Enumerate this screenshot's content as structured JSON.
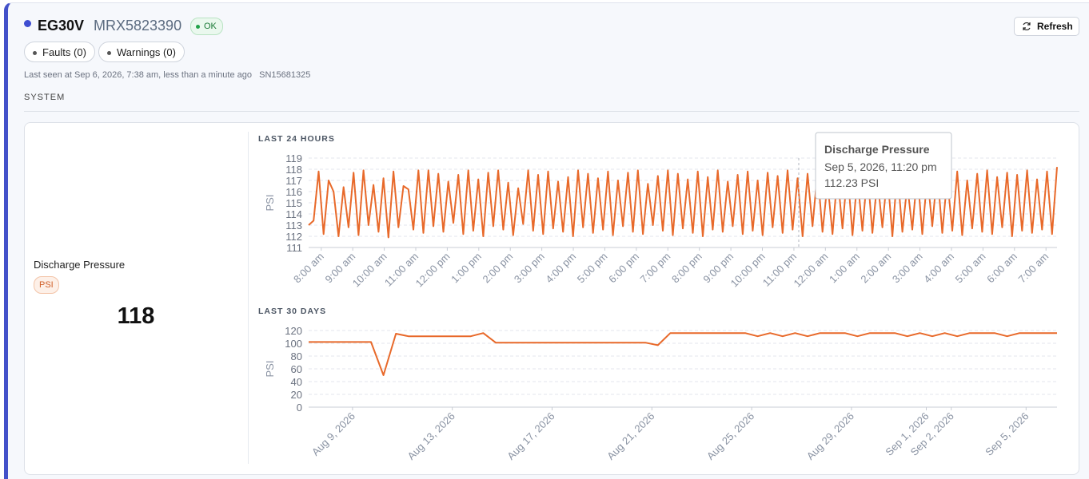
{
  "header": {
    "title": "EG30V",
    "model": "MRX5823390",
    "status": "OK",
    "faults": "Faults (0)",
    "warnings": "Warnings (0)",
    "last_seen": "Last seen at Sep 6, 2026, 7:38 am, less than a minute ago",
    "serial": "SN15681325",
    "refresh": "Refresh",
    "section": "SYSTEM"
  },
  "metric": {
    "name": "Discharge Pressure",
    "unit": "PSI",
    "value": 118
  },
  "charts": [
    {
      "type": "line",
      "title": "LAST 24 HOURS",
      "ylabel": "PSI",
      "color": "#e8692a",
      "grid": true,
      "ylim": [
        111,
        119
      ],
      "yticks": [
        111,
        112,
        113,
        114,
        115,
        116,
        117,
        118,
        119
      ],
      "xlim": [
        -0.4,
        23.35
      ],
      "xticks": [
        {
          "value": 0,
          "label": "8:00 am"
        },
        {
          "value": 1,
          "label": "9:00 am"
        },
        {
          "value": 2,
          "label": "10:00 am"
        },
        {
          "value": 3,
          "label": "11:00 am"
        },
        {
          "value": 4,
          "label": "12:00 pm"
        },
        {
          "value": 5,
          "label": "1:00 pm"
        },
        {
          "value": 6,
          "label": "2:00 pm"
        },
        {
          "value": 7,
          "label": "3:00 pm"
        },
        {
          "value": 8,
          "label": "4:00 pm"
        },
        {
          "value": 9,
          "label": "5:00 pm"
        },
        {
          "value": 10,
          "label": "6:00 pm"
        },
        {
          "value": 11,
          "label": "7:00 pm"
        },
        {
          "value": 12,
          "label": "8:00 pm"
        },
        {
          "value": 13,
          "label": "9:00 pm"
        },
        {
          "value": 14,
          "label": "10:00 pm"
        },
        {
          "value": 15,
          "label": "11:00 pm"
        },
        {
          "value": 16,
          "label": "12:00 am"
        },
        {
          "value": 17,
          "label": "1:00 am"
        },
        {
          "value": 18,
          "label": "2:00 am"
        },
        {
          "value": 19,
          "label": "3:00 am"
        },
        {
          "value": 20,
          "label": "4:00 am"
        },
        {
          "value": 21,
          "label": "5:00 am"
        },
        {
          "value": 22,
          "label": "6:00 am"
        },
        {
          "value": 23,
          "label": "7:00 am"
        }
      ],
      "values": [
        113,
        113.4,
        117.8,
        112.2,
        117,
        116,
        112,
        116.4,
        112.8,
        117.7,
        112.1,
        117.9,
        113,
        116.6,
        112.4,
        117.2,
        111.9,
        117.8,
        112.8,
        116.5,
        116.2,
        112.6,
        117.9,
        112.3,
        117.9,
        112.9,
        117.6,
        112.4,
        116.9,
        113.2,
        117.5,
        112.2,
        117.9,
        112.5,
        117.1,
        112.0,
        117.7,
        112.9,
        117.9,
        112.6,
        116.8,
        112.1,
        116.3,
        113.1,
        117.9,
        112.5,
        117.5,
        112.2,
        117.8,
        112.7,
        116.9,
        112.4,
        117.3,
        112.0,
        117.9,
        112.8,
        117.6,
        112.3,
        117.2,
        112.6,
        117.8,
        112.1,
        117.0,
        112.9,
        117.7,
        112.4,
        117.9,
        112.2,
        116.7,
        113.0,
        117.4,
        112.5,
        117.9,
        112.1,
        117.6,
        112.7,
        117.1,
        112.3,
        117.8,
        112.0,
        117.3,
        112.6,
        117.9,
        112.4,
        116.9,
        112.9,
        117.5,
        112.2,
        117.8,
        112.5,
        117.0,
        112.1,
        117.7,
        112.8,
        117.4,
        112.3,
        117.9,
        112.6,
        117.2,
        112.0,
        117.6,
        112.9,
        117.8,
        112.4,
        116.8,
        112.2,
        117.5,
        112.7,
        117.9,
        112.1,
        117.3,
        112.5,
        117.8,
        112.3,
        117.1,
        112.8,
        117.6,
        112.0,
        117.9,
        112.4,
        116.6,
        112.6,
        117.7,
        112.2,
        117.4,
        112.9,
        117.9,
        112.3,
        117.2,
        112.5,
        117.8,
        112.1,
        117.0,
        112.7,
        117.6,
        112.4,
        117.9,
        112.2,
        117.3,
        112.8,
        117.7,
        112.0,
        117.5,
        112.5,
        117.9,
        112.3,
        117.1,
        112.6,
        117.8,
        112.2,
        118.2
      ],
      "tooltip": {
        "title": "Discharge Pressure",
        "date": "Sep 5, 2026, 11:20 pm",
        "value": "112.23 PSI"
      }
    },
    {
      "type": "line",
      "title": "LAST 30 DAYS",
      "ylabel": "PSI",
      "color": "#e8692a",
      "grid": true,
      "ylim": [
        0,
        120
      ],
      "yticks": [
        0,
        20,
        40,
        60,
        80,
        100,
        120
      ],
      "xlim": [
        -1.76,
        28.24
      ],
      "xticks": [
        {
          "value": 0,
          "label": "Aug 9, 2026"
        },
        {
          "value": 4,
          "label": "Aug 13, 2026"
        },
        {
          "value": 8,
          "label": "Aug 17, 2026"
        },
        {
          "value": 12,
          "label": "Aug 21, 2026"
        },
        {
          "value": 16,
          "label": "Aug 25, 2026"
        },
        {
          "value": 20,
          "label": "Aug 29, 2026"
        },
        {
          "value": 23,
          "label": "Sep 1, 2026"
        },
        {
          "value": 24,
          "label": "Sep 2, 2026"
        },
        {
          "value": 27,
          "label": "Sep 5, 2026"
        }
      ],
      "values": [
        102,
        102,
        102,
        102,
        102,
        102,
        50,
        115,
        111,
        111,
        111,
        111,
        111,
        111,
        116,
        101,
        101,
        101,
        101,
        101,
        101,
        101,
        101,
        101,
        101,
        101,
        101,
        101,
        97,
        116,
        116,
        116,
        116,
        116,
        116,
        116,
        111,
        116,
        111,
        116,
        111,
        116,
        116,
        116,
        111,
        116,
        116,
        116,
        111,
        116,
        111,
        116,
        111,
        116,
        116,
        116,
        111,
        116,
        116,
        116,
        116
      ]
    }
  ]
}
